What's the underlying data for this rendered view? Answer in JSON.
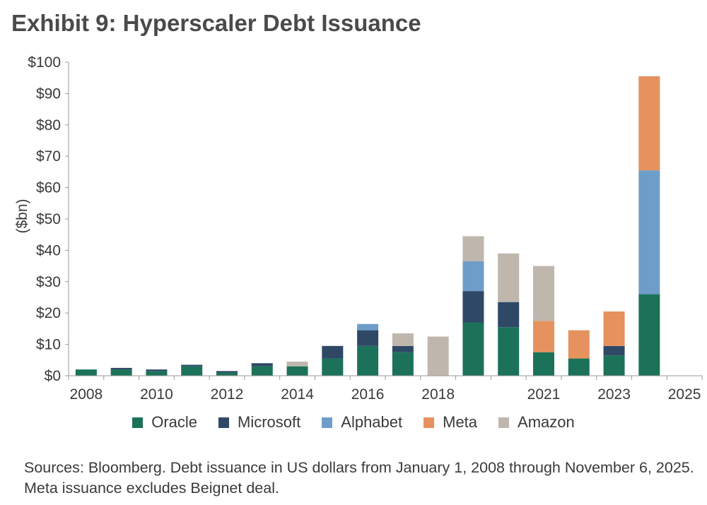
{
  "title": "Exhibit 9: Hyperscaler Debt Issuance",
  "source_note": "Sources: Bloomberg. Debt issuance in US dollars from January 1, 2008 through November 6, 2025. Meta issuance excludes Beignet deal.",
  "chart_data": {
    "type": "bar",
    "stacked": true,
    "title": "Exhibit 9: Hyperscaler Debt Issuance",
    "ylabel": "($bn)",
    "xlabel": "",
    "ylim": [
      0,
      100
    ],
    "yticks": [
      0,
      10,
      20,
      30,
      40,
      50,
      60,
      70,
      80,
      90,
      100
    ],
    "ytick_labels": [
      "$0",
      "$10",
      "$20",
      "$30",
      "$40",
      "$50",
      "$60",
      "$70",
      "$80",
      "$90",
      "$100"
    ],
    "categories": [
      "2008",
      "2009",
      "2010",
      "2011",
      "2012",
      "2013",
      "2014",
      "2015",
      "2016",
      "2017",
      "2018",
      "2019",
      "2020",
      "2021",
      "2022",
      "2023",
      "2024",
      "2025"
    ],
    "xtick_labels": [
      "2008",
      "2010",
      "2012",
      "2014",
      "2016",
      "2018",
      "2021",
      "2023",
      "2025"
    ],
    "xtick_positions": [
      0,
      2,
      4,
      6,
      8,
      10,
      13,
      15,
      17
    ],
    "legend_position": "bottom",
    "series": [
      {
        "name": "Oracle",
        "color": "#1b7259",
        "values": [
          2,
          2,
          1.5,
          3,
          1,
          3,
          3,
          5.5,
          9.5,
          7.5,
          0,
          17,
          15.5,
          7.5,
          5.5,
          6.5,
          26,
          0
        ]
      },
      {
        "name": "Microsoft",
        "color": "#2e4866",
        "values": [
          0,
          0.5,
          0.5,
          0.5,
          0.5,
          1,
          0,
          4,
          5,
          2,
          0,
          10,
          8,
          0,
          0,
          3,
          0,
          0
        ]
      },
      {
        "name": "Alphabet",
        "color": "#6f9dc9",
        "values": [
          0,
          0,
          0,
          0,
          0,
          0,
          0,
          0,
          2,
          0,
          0,
          9.5,
          0,
          0,
          0,
          0,
          39.5,
          0
        ]
      },
      {
        "name": "Meta",
        "color": "#e5925f",
        "values": [
          0,
          0,
          0,
          0,
          0,
          0,
          0,
          0,
          0,
          0,
          0,
          0,
          0,
          10,
          9,
          11,
          30,
          0
        ]
      },
      {
        "name": "Amazon",
        "color": "#bfb7ae",
        "values": [
          0,
          0,
          0,
          0,
          0,
          0,
          1.5,
          0,
          0,
          4,
          12.5,
          8,
          15.5,
          17.5,
          0,
          0,
          0,
          0
        ]
      }
    ]
  }
}
